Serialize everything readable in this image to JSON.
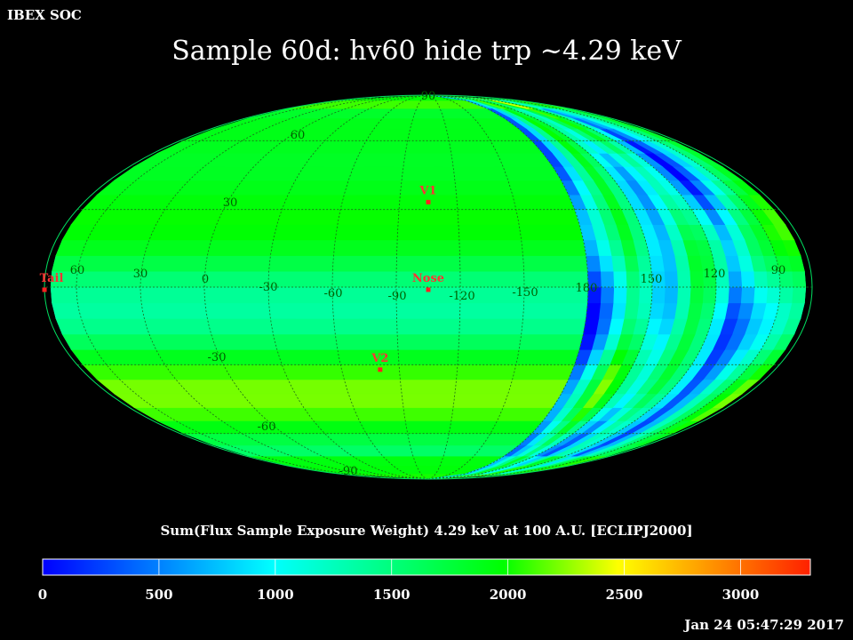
{
  "header": {
    "app": "IBEX SOC"
  },
  "title": "Sample 60d: hv60 hide trp ~4.29 keV",
  "map": {
    "projection": "Mollweide",
    "frame": "ECLIPJ2000",
    "lat_labels": [
      "90",
      "60",
      "30",
      "-30",
      "-60",
      "-90"
    ],
    "lon_labels": [
      "60",
      "30",
      "0",
      "-30",
      "-60",
      "-90",
      "-120",
      "-150",
      "180",
      "150",
      "120",
      "90"
    ],
    "markers": [
      {
        "label": "V1",
        "lon": -105,
        "lat": 33
      },
      {
        "label": "Nose",
        "lon": -105,
        "lat": -1
      },
      {
        "label": "V2",
        "lon": -80,
        "lat": -32
      },
      {
        "label": "Tail",
        "lon": 75,
        "lat": -1
      }
    ],
    "marker_color": "#ff2020",
    "label_color": "#ff3333",
    "grid_label_color": "#006000"
  },
  "colorbar": {
    "title": "Sum(Flux Sample Exposure Weight)  4.29 keV at 100 A.U. [ECLIPJ2000]",
    "ticks": [
      "0",
      "500",
      "1000",
      "1500",
      "2000",
      "2500",
      "3000"
    ],
    "range": [
      0,
      3300
    ],
    "stops": [
      "#0000ff",
      "#00ffff",
      "#00ff00",
      "#ffff00",
      "#ff0000"
    ]
  },
  "timestamp": "Jan 24 05:47:29 2017"
}
